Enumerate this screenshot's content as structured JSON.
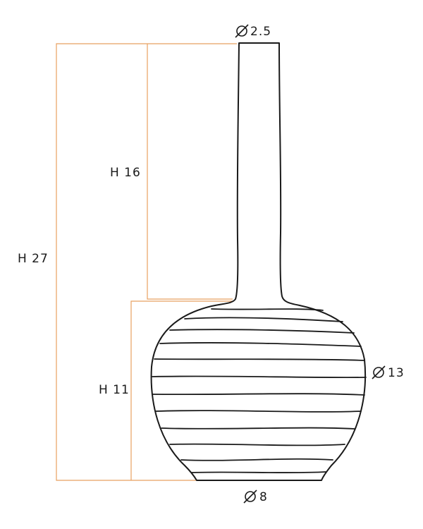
{
  "dimensions": {
    "neck_diameter": "2.5",
    "body_diameter": "13",
    "base_diameter": "8",
    "total_height": "H 27",
    "neck_height": "H 16",
    "body_height": "H 11"
  },
  "colors": {
    "dimension_line": "#e8a060",
    "outline": "#1a1a1a"
  },
  "icons": {
    "diameter_symbol": "diameter-icon"
  }
}
